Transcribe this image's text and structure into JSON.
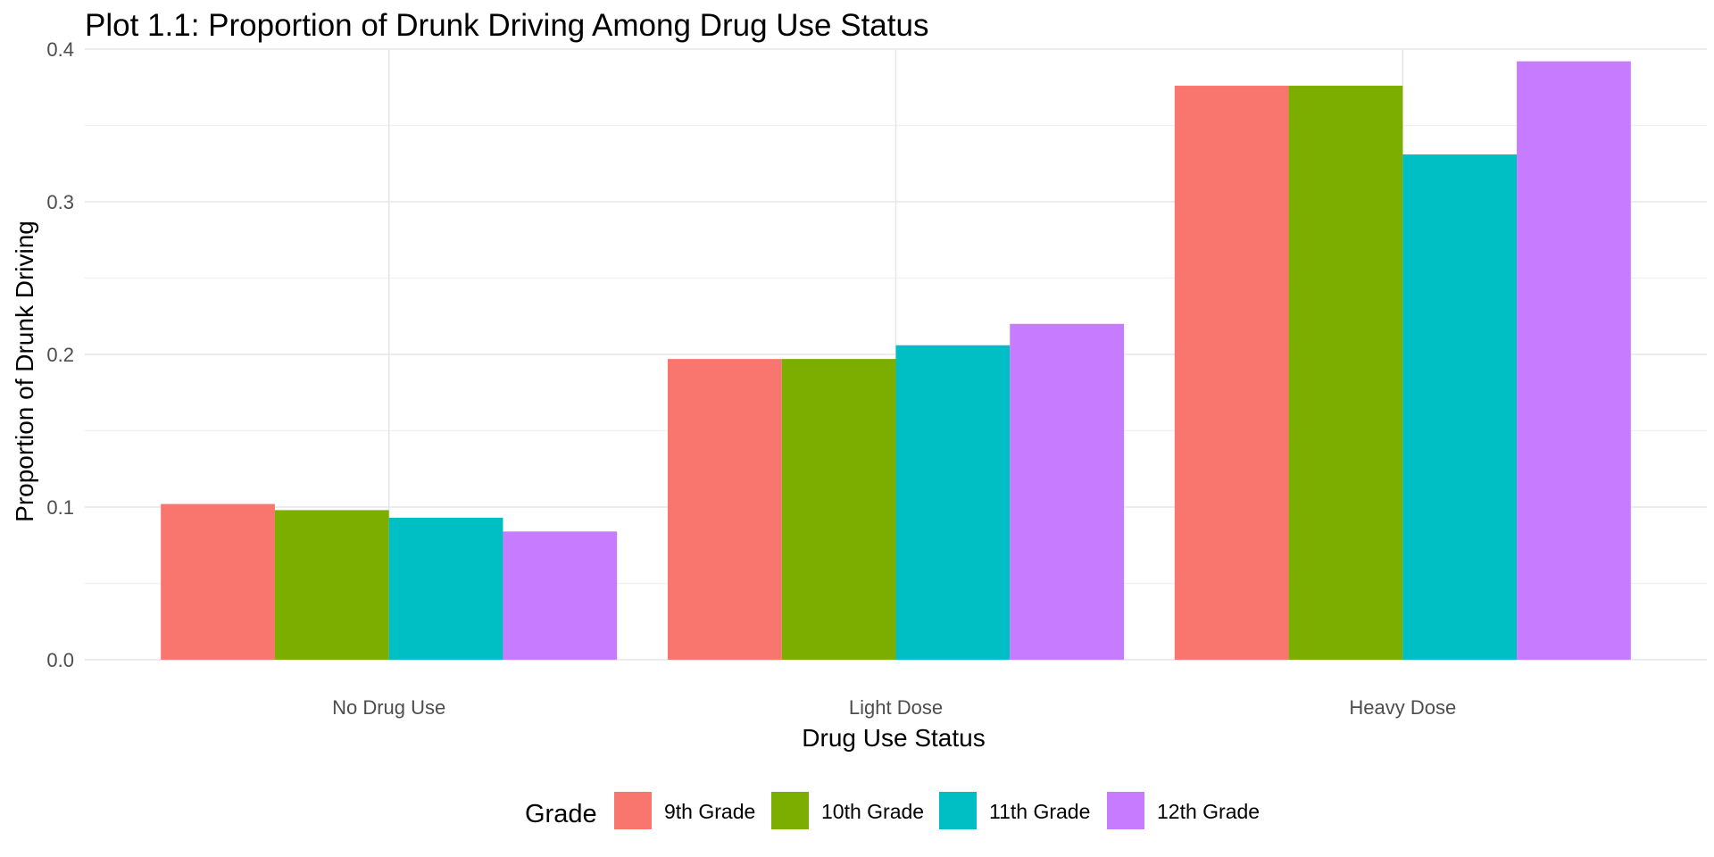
{
  "chart_data": {
    "type": "bar",
    "title": "Plot 1.1: Proportion of Drunk Driving Among Drug Use Status",
    "xlabel": "Drug Use Status",
    "ylabel": "Proportion of Drunk Driving",
    "categories": [
      "No Drug Use",
      "Light Dose",
      "Heavy Dose"
    ],
    "series": [
      {
        "name": "9th Grade",
        "color": "#F8766D",
        "values": [
          0.102,
          0.197,
          0.376
        ]
      },
      {
        "name": "10th Grade",
        "color": "#7CAE00",
        "values": [
          0.098,
          0.197,
          0.376
        ]
      },
      {
        "name": "11th Grade",
        "color": "#00BFC4",
        "values": [
          0.093,
          0.206,
          0.331
        ]
      },
      {
        "name": "12th Grade",
        "color": "#C77CFF",
        "values": [
          0.084,
          0.22,
          0.392
        ]
      }
    ],
    "ylim": [
      0,
      0.4
    ],
    "yticks": [
      0.0,
      0.1,
      0.2,
      0.3,
      0.4
    ],
    "ytick_labels": [
      "0.0",
      "0.1",
      "0.2",
      "0.3",
      "0.4"
    ],
    "grid": true,
    "legend": {
      "title": "Grade",
      "placement": "bottom"
    }
  }
}
